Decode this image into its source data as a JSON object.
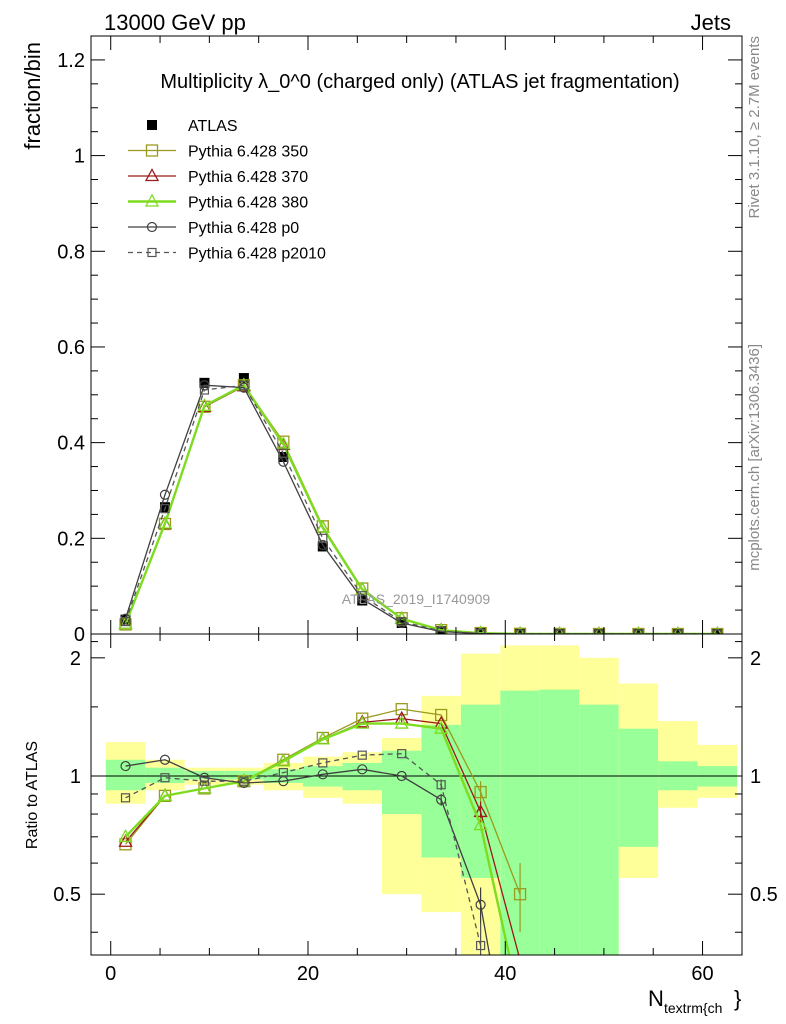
{
  "header": {
    "left": "13000 GeV pp",
    "right": "Jets"
  },
  "side_labels": {
    "rivet": "Rivet 3.1.10, ≥ 2.7M events",
    "mcplots": "mcplots.cern.ch [arXiv:1306.3436]"
  },
  "watermark": "ATLAS_2019_I1740909",
  "chart_data": [
    {
      "type": "scatter",
      "title": "Multiplicity λ_0^0 (charged only) (ATLAS jet fragmentation)",
      "ylabel": "fraction/bin",
      "xlim": [
        -2,
        64
      ],
      "ylim": [
        0,
        1.25
      ],
      "yticks": [
        0,
        0.2,
        0.4,
        0.6,
        0.8,
        1,
        1.2
      ],
      "ytick_labels": [
        "0",
        "0.2",
        "0.4",
        "0.6",
        "0.8",
        "1",
        "1.2"
      ],
      "legend_position": "top-left",
      "x": [
        1.5,
        5.5,
        9.5,
        13.5,
        17.5,
        21.5,
        25.5,
        29.5,
        33.5,
        37.5,
        41.5,
        45.5,
        49.5,
        53.5,
        57.5,
        61.5
      ],
      "series": [
        {
          "name": "ATLAS",
          "color": "#000000",
          "marker": "filled-square",
          "line": "none",
          "values": [
            0.03,
            0.265,
            0.525,
            0.535,
            0.37,
            0.183,
            0.07,
            0.023,
            0.006,
            0.002,
            0.0008,
            0.0004,
            0.0002,
            0.0001,
            0.0001,
            5e-05
          ]
        },
        {
          "name": "Pythia 6.428 350",
          "color": "#9a9a1e",
          "marker": "open-square",
          "line": "solid",
          "values": [
            0.02,
            0.23,
            0.475,
            0.52,
            0.402,
            0.225,
            0.095,
            0.033,
            0.008,
            0.002,
            0.0004,
            0.0001,
            5e-05,
            0,
            0,
            0
          ]
        },
        {
          "name": "Pythia 6.428 370",
          "color": "#9b1a1a",
          "marker": "open-triangle",
          "line": "solid",
          "values": [
            0.021,
            0.23,
            0.475,
            0.518,
            0.395,
            0.222,
            0.093,
            0.032,
            0.008,
            0.0016,
            0.0003,
            0,
            0,
            0,
            0,
            0
          ]
        },
        {
          "name": "Pythia 6.428 380",
          "color": "#7ddc1f",
          "marker": "open-triangle",
          "line": "solid",
          "values": [
            0.021,
            0.231,
            0.477,
            0.52,
            0.397,
            0.222,
            0.093,
            0.032,
            0.008,
            0.0016,
            0.0002,
            0,
            0,
            0,
            0,
            0
          ]
        },
        {
          "name": "Pythia 6.428 p0",
          "color": "#404040",
          "marker": "open-circle",
          "line": "solid",
          "values": [
            0.032,
            0.291,
            0.52,
            0.515,
            0.36,
            0.186,
            0.073,
            0.023,
            0.005,
            0.001,
            0,
            0,
            0,
            0,
            0,
            0
          ]
        },
        {
          "name": "Pythia 6.428 p2010",
          "color": "#555555",
          "marker": "open-square-small",
          "line": "dashed",
          "values": [
            0.026,
            0.262,
            0.51,
            0.52,
            0.378,
            0.2,
            0.08,
            0.026,
            0.006,
            0.001,
            0,
            0,
            0,
            0,
            0,
            0
          ]
        }
      ]
    },
    {
      "type": "scatter",
      "ylabel": "Ratio to ATLAS",
      "xlabel_main": "N",
      "xlabel_sub": "textrm{ch",
      "xlabel_tail": "}",
      "xlim": [
        -2,
        64
      ],
      "ylim": [
        0.35,
        2.3
      ],
      "yticks": [
        0.5,
        1,
        2
      ],
      "ytick_labels": [
        "0.5",
        "1",
        "2"
      ],
      "xticks": [
        0,
        20,
        40,
        60
      ],
      "xtick_labels": [
        "0",
        "20",
        "40",
        "60"
      ],
      "bins": [
        [
          -0.5,
          3.5
        ],
        [
          3.5,
          7.5
        ],
        [
          7.5,
          11.5
        ],
        [
          11.5,
          15.5
        ],
        [
          15.5,
          19.5
        ],
        [
          19.5,
          23.5
        ],
        [
          23.5,
          27.5
        ],
        [
          27.5,
          31.5
        ],
        [
          31.5,
          35.5
        ],
        [
          35.5,
          39.5
        ],
        [
          39.5,
          43.5
        ],
        [
          43.5,
          47.5
        ],
        [
          47.5,
          51.5
        ],
        [
          51.5,
          55.5
        ],
        [
          55.5,
          59.5
        ],
        [
          59.5,
          63.5
        ]
      ],
      "band_colors": {
        "outer": "#ffff99",
        "inner": "#99ff99"
      },
      "band_outer": [
        [
          0.85,
          1.22
        ],
        [
          0.92,
          1.1
        ],
        [
          0.95,
          1.05
        ],
        [
          0.95,
          1.05
        ],
        [
          0.92,
          1.08
        ],
        [
          0.88,
          1.12
        ],
        [
          0.85,
          1.15
        ],
        [
          0.5,
          1.25
        ],
        [
          0.45,
          1.6
        ],
        [
          0.35,
          2.05
        ],
        [
          0.35,
          2.15
        ],
        [
          0.35,
          2.15
        ],
        [
          0.35,
          2.0
        ],
        [
          0.55,
          1.72
        ],
        [
          0.83,
          1.38
        ],
        [
          0.88,
          1.2
        ]
      ],
      "band_inner": [
        [
          0.92,
          1.1
        ],
        [
          0.96,
          1.05
        ],
        [
          0.98,
          1.03
        ],
        [
          0.98,
          1.03
        ],
        [
          0.96,
          1.04
        ],
        [
          0.94,
          1.06
        ],
        [
          0.92,
          1.08
        ],
        [
          0.8,
          1.16
        ],
        [
          0.62,
          1.35
        ],
        [
          0.55,
          1.52
        ],
        [
          0.35,
          1.65
        ],
        [
          0.35,
          1.66
        ],
        [
          0.35,
          1.52
        ],
        [
          0.66,
          1.32
        ],
        [
          0.92,
          1.09
        ],
        [
          0.94,
          1.06
        ]
      ],
      "series": [
        {
          "name": "Pythia 6.428 350",
          "color": "#9a9a1e",
          "marker": "open-square",
          "line": "solid",
          "x": [
            1.5,
            5.5,
            9.5,
            13.5,
            17.5,
            21.5,
            25.5,
            29.5,
            33.5,
            37.5,
            41.5
          ],
          "values": [
            0.67,
            0.89,
            0.93,
            0.97,
            1.1,
            1.25,
            1.4,
            1.48,
            1.43,
            0.91,
            0.5
          ],
          "errors": [
            0,
            0,
            0,
            0,
            0,
            0,
            0,
            0,
            0,
            0.06,
            0.1
          ]
        },
        {
          "name": "Pythia 6.428 370",
          "color": "#9b1a1a",
          "marker": "open-triangle",
          "line": "solid",
          "x": [
            1.5,
            5.5,
            9.5,
            13.5,
            17.5,
            21.5,
            25.5,
            29.5,
            33.5,
            37.5,
            41.5
          ],
          "values": [
            0.68,
            0.89,
            0.93,
            0.97,
            1.09,
            1.24,
            1.37,
            1.4,
            1.36,
            0.81,
            0.34
          ],
          "errors": [
            0,
            0,
            0,
            0,
            0,
            0,
            0,
            0.03,
            0,
            0.05,
            0
          ]
        },
        {
          "name": "Pythia 6.428 380",
          "color": "#7ddc1f",
          "marker": "open-triangle",
          "line": "solid",
          "x": [
            1.5,
            5.5,
            9.5,
            13.5,
            17.5,
            21.5,
            25.5,
            29.5,
            33.5,
            37.5,
            40.5
          ],
          "values": [
            0.7,
            0.89,
            0.93,
            0.97,
            1.09,
            1.24,
            1.36,
            1.36,
            1.32,
            0.75,
            0.34
          ],
          "errors": [
            0,
            0,
            0,
            0,
            0,
            0,
            0,
            0,
            0,
            0,
            0
          ]
        },
        {
          "name": "Pythia 6.428 p0",
          "color": "#404040",
          "marker": "open-circle",
          "line": "solid",
          "x": [
            1.5,
            5.5,
            9.5,
            13.5,
            17.5,
            21.5,
            25.5,
            29.5,
            33.5,
            37.5,
            38.5
          ],
          "values": [
            1.06,
            1.1,
            0.99,
            0.96,
            0.97,
            1.01,
            1.04,
            1.0,
            0.87,
            0.47,
            0.34
          ],
          "errors": [
            0,
            0,
            0,
            0,
            0,
            0,
            0,
            0,
            0.03,
            0.05,
            0
          ]
        },
        {
          "name": "Pythia 6.428 p2010",
          "color": "#555555",
          "marker": "open-square-small",
          "line": "dashed",
          "x": [
            1.5,
            5.5,
            9.5,
            13.5,
            17.5,
            21.5,
            25.5,
            29.5,
            33.5,
            37.5
          ],
          "values": [
            0.88,
            0.99,
            0.97,
            0.97,
            1.02,
            1.08,
            1.13,
            1.14,
            0.95,
            0.37
          ],
          "errors": [
            0,
            0,
            0,
            0,
            0,
            0,
            0,
            0,
            0.03,
            0.05
          ]
        }
      ]
    }
  ]
}
